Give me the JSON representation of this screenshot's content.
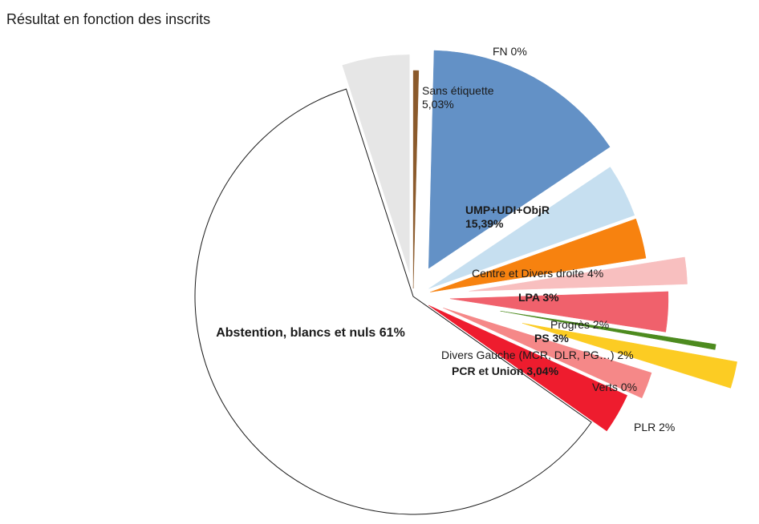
{
  "chart_data": {
    "type": "pie",
    "title": "Résultat en fonction des inscrits",
    "start_angle_deg": 0,
    "slices": [
      {
        "label": "FN",
        "value_label": "0%",
        "value": 0.4,
        "color": "#8b5a2b",
        "bold": false
      },
      {
        "label": "UMP+UDI+ObjR",
        "value_label": "15,39%",
        "value": 15.39,
        "color": "#6391c6",
        "bold": true
      },
      {
        "label": "Centre et Divers droite",
        "value_label": "4%",
        "value": 4,
        "color": "#c6dff0",
        "bold": false
      },
      {
        "label": "LPA",
        "value_label": "3%",
        "value": 3,
        "color": "#f7820f",
        "bold": true
      },
      {
        "label": "Progrès",
        "value_label": "2%",
        "value": 2,
        "color": "#f8bfbf",
        "bold": false
      },
      {
        "label": "PS",
        "value_label": "3%",
        "value": 3,
        "color": "#f0616c",
        "bold": true
      },
      {
        "label": "Verts",
        "value_label": "0%",
        "value": 0.4,
        "color": "#4d8b1f",
        "bold": false
      },
      {
        "label": "PLR",
        "value_label": "2%",
        "value": 2,
        "color": "#fccc23",
        "bold": false
      },
      {
        "label": "Divers Gauche (MCR, DLR, PG…)",
        "value_label": "2%",
        "value": 2,
        "color": "#f58888",
        "bold": false
      },
      {
        "label": "PCR et Union",
        "value_label": "3,04%",
        "value": 3.04,
        "color": "#ee1c2e",
        "bold": true
      },
      {
        "label": "Abstention, blancs et nuls",
        "value_label": "61%",
        "value": 61,
        "color": "#ffffff",
        "bold": true
      },
      {
        "label": "Sans étiquette",
        "value_label": "5,03%",
        "value": 5.03,
        "color": "#e6e6e6",
        "bold": false
      }
    ]
  }
}
